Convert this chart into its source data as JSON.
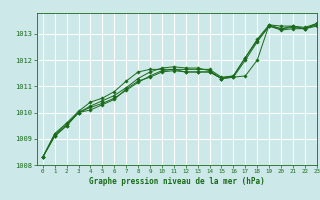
{
  "title": "Graphe pression niveau de la mer (hPa)",
  "xlim": [
    -0.5,
    23
  ],
  "ylim": [
    1008,
    1013.8
  ],
  "yticks": [
    1008,
    1009,
    1010,
    1011,
    1012,
    1013
  ],
  "xticks": [
    0,
    1,
    2,
    3,
    4,
    5,
    6,
    7,
    8,
    9,
    10,
    11,
    12,
    13,
    14,
    15,
    16,
    17,
    18,
    19,
    20,
    21,
    22,
    23
  ],
  "bg_color": "#cce8e8",
  "grid_color": "#ffffff",
  "line_color": "#1a6b1a",
  "series": [
    [
      1008.3,
      1009.1,
      1009.5,
      1010.0,
      1010.1,
      1010.3,
      1010.5,
      1010.9,
      1011.2,
      1011.35,
      1011.55,
      1011.6,
      1011.55,
      1011.55,
      1011.55,
      1011.3,
      1011.35,
      1012.0,
      1012.7,
      1013.3,
      1013.15,
      1013.2,
      1013.2,
      1013.3
    ],
    [
      1008.3,
      1009.1,
      1009.5,
      1010.0,
      1010.2,
      1010.35,
      1010.55,
      1010.85,
      1011.15,
      1011.4,
      1011.6,
      1011.65,
      1011.65,
      1011.65,
      1011.65,
      1011.35,
      1011.4,
      1012.1,
      1012.75,
      1013.3,
      1013.2,
      1013.25,
      1013.2,
      1013.35
    ],
    [
      1008.3,
      1009.15,
      1009.55,
      1010.0,
      1010.25,
      1010.45,
      1010.65,
      1010.95,
      1011.3,
      1011.55,
      1011.7,
      1011.75,
      1011.7,
      1011.7,
      1011.6,
      1011.3,
      1011.4,
      1012.1,
      1012.8,
      1013.35,
      1013.3,
      1013.3,
      1013.25,
      1013.4
    ],
    [
      1008.3,
      1009.2,
      1009.6,
      1010.05,
      1010.4,
      1010.55,
      1010.8,
      1011.2,
      1011.55,
      1011.65,
      1011.65,
      1011.65,
      1011.55,
      1011.55,
      1011.55,
      1011.3,
      1011.35,
      1011.4,
      1012.0,
      1013.35,
      1013.2,
      1013.3,
      1013.2,
      1013.4
    ]
  ]
}
